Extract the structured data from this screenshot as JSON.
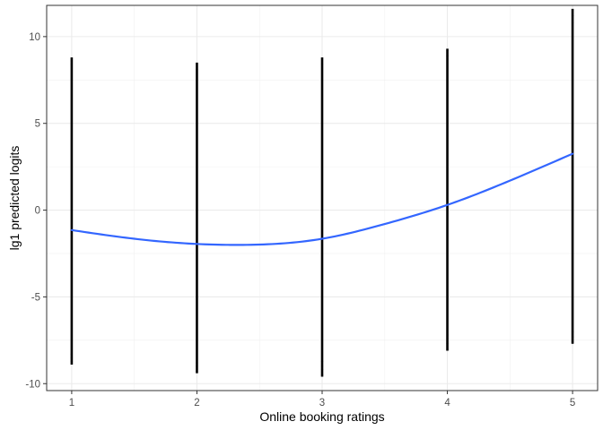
{
  "chart_data": {
    "type": "scatter",
    "title": "",
    "xlabel": "Online booking ratings",
    "ylabel": "lg1 predicted logits",
    "xlim": [
      0.8,
      5.2
    ],
    "ylim": [
      -10.4,
      11.8
    ],
    "x_ticks": [
      1,
      2,
      3,
      4,
      5
    ],
    "y_ticks": [
      -10,
      -5,
      0,
      5,
      10
    ],
    "x_tick_labels": [
      "1",
      "2",
      "3",
      "4",
      "5"
    ],
    "y_tick_labels": [
      "-10",
      "-5",
      "0",
      "5",
      "10"
    ],
    "grid": true,
    "legend": "none",
    "point_color": "#000000",
    "smooth_color": "#3366ff",
    "series": [
      {
        "kind": "points",
        "columns": [
          {
            "x": 1,
            "min": -8.9,
            "max": 8.8,
            "outliers_low": [
              -8.7,
              -8.5,
              -8.3
            ],
            "outliers_high": [
              8.6,
              8.4
            ]
          },
          {
            "x": 2,
            "min": -9.4,
            "max": 8.5,
            "outliers_low": [
              -9.3,
              -9.0,
              -8.8
            ],
            "outliers_high": [
              8.4,
              8.1
            ]
          },
          {
            "x": 3,
            "min": -9.6,
            "max": 8.8,
            "outliers_low": [
              -9.5,
              -9.2,
              -9.0,
              -8.7
            ],
            "outliers_high": [
              8.7,
              8.4
            ]
          },
          {
            "x": 4,
            "min": -8.1,
            "max": 9.3,
            "outliers_low": [
              -8.0,
              -7.7,
              -7.4,
              -7.2
            ],
            "outliers_high": [
              9.2,
              8.9,
              8.7
            ]
          },
          {
            "x": 5,
            "min": -7.7,
            "max": 11.6,
            "outliers_low": [
              -7.6,
              -7.3,
              -7.0
            ],
            "outliers_high": [
              11.5,
              11.2,
              10.8
            ]
          }
        ]
      },
      {
        "kind": "smooth",
        "x": [
          1.0,
          1.5,
          2.0,
          2.4,
          3.0,
          3.5,
          4.0,
          4.5,
          5.0
        ],
        "y": [
          -1.15,
          -1.65,
          -1.95,
          -2.0,
          -1.65,
          -0.8,
          0.3,
          1.7,
          3.25
        ]
      }
    ]
  }
}
